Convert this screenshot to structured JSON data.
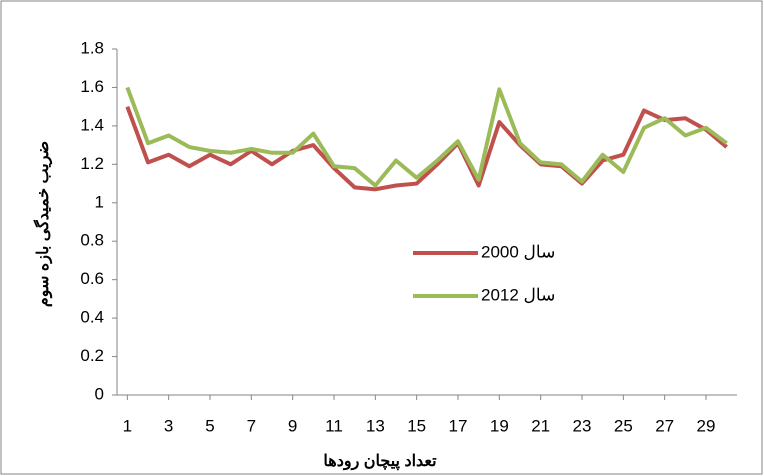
{
  "chart_data": {
    "type": "line",
    "x_label": "تعداد پیچان رودها",
    "y_label": "ضریب خمیدگی بازه سوم",
    "x": [
      1,
      2,
      3,
      4,
      5,
      6,
      7,
      8,
      9,
      10,
      11,
      12,
      13,
      14,
      15,
      16,
      17,
      18,
      19,
      20,
      21,
      22,
      23,
      24,
      25,
      26,
      27,
      28,
      29,
      30
    ],
    "series": [
      {
        "name": "سال 2000",
        "color": "#c0504d",
        "values": [
          1.5,
          1.21,
          1.25,
          1.19,
          1.25,
          1.2,
          1.27,
          1.2,
          1.27,
          1.3,
          1.18,
          1.08,
          1.07,
          1.09,
          1.1,
          1.2,
          1.31,
          1.09,
          1.42,
          1.3,
          1.2,
          1.19,
          1.1,
          1.22,
          1.25,
          1.48,
          1.43,
          1.44,
          1.38,
          1.29
        ]
      },
      {
        "name": "سال 2012",
        "color": "#9bbb59",
        "values": [
          1.6,
          1.31,
          1.35,
          1.29,
          1.27,
          1.26,
          1.28,
          1.26,
          1.26,
          1.36,
          1.19,
          1.18,
          1.09,
          1.22,
          1.13,
          1.22,
          1.32,
          1.12,
          1.59,
          1.31,
          1.21,
          1.2,
          1.11,
          1.25,
          1.16,
          1.39,
          1.44,
          1.35,
          1.39,
          1.31
        ]
      }
    ],
    "xlim": [
      0.5,
      30.5
    ],
    "xticks": [
      1,
      3,
      5,
      7,
      9,
      11,
      13,
      15,
      17,
      19,
      21,
      23,
      25,
      27,
      29
    ],
    "ylim": [
      0,
      1.8
    ],
    "yticks": [
      0,
      0.2,
      0.4,
      0.6,
      0.8,
      1,
      1.2,
      1.4,
      1.6,
      1.8
    ],
    "grid": false,
    "legend": "inside"
  }
}
